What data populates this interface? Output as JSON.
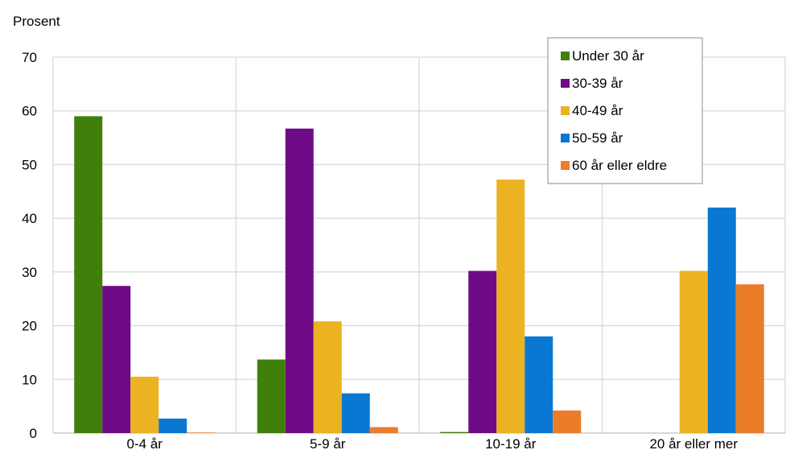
{
  "chart_data": {
    "type": "bar",
    "ylabel": "Prosent",
    "ylim": [
      0,
      70
    ],
    "yticks": [
      0,
      10,
      20,
      30,
      40,
      50,
      60,
      70
    ],
    "categories": [
      "0-4 år",
      "5-9 år",
      "10-19 år",
      "20 år eller mer"
    ],
    "series": [
      {
        "name": "Under 30 år",
        "color": "#3f7f0a",
        "values": [
          59,
          13.7,
          0.2,
          0
        ]
      },
      {
        "name": "30-39 år",
        "color": "#6e0a86",
        "values": [
          27.4,
          56.7,
          30.2,
          0
        ]
      },
      {
        "name": "40-49 år",
        "color": "#ebb321",
        "values": [
          10.5,
          20.8,
          47.2,
          30.2
        ]
      },
      {
        "name": "50-59 år",
        "color": "#0a78d2",
        "values": [
          2.7,
          7.4,
          18,
          42
        ]
      },
      {
        "name": "60 år eller eldre",
        "color": "#eb7d28",
        "values": [
          0.1,
          1.1,
          4.2,
          27.7
        ]
      }
    ],
    "grid": true,
    "legend_position": "top-right"
  }
}
